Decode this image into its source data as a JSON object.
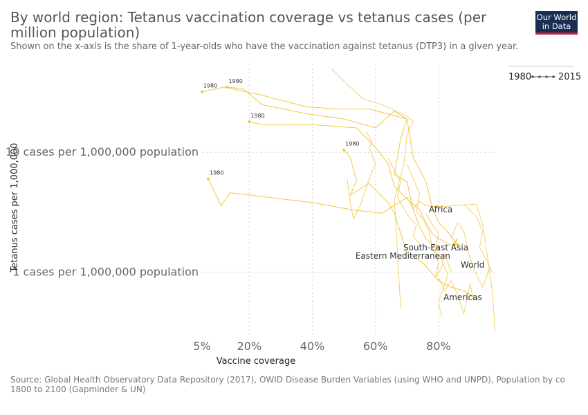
{
  "header": {
    "title": "By world region: Tetanus vaccination coverage vs tetanus cases (per million population)",
    "subtitle": "Shown on the x-axis is the share of 1-year-olds who have the vaccination against tetanus (DTP3) in a given year."
  },
  "logo": {
    "line1": "Our World",
    "line2": "in Data"
  },
  "timeline": {
    "start": "1980",
    "end": "2015"
  },
  "source": {
    "line1": "Source: Global Health Observatory Data Repository (2017), OWID Disease Burden Variables (using WHO and UNPD), Population by co",
    "line2": "1800 to 2100 (Gapminder & UN)"
  },
  "colors": {
    "series": "#f4c542",
    "grid": "#dddddd",
    "label": "#333333"
  },
  "chart_data": {
    "type": "scatter",
    "connected": true,
    "xlabel": "Vaccine coverage",
    "ylabel": "Tetanus cases per 1,000,000",
    "xscale": "linear",
    "yscale": "log",
    "xlim": [
      5,
      98
    ],
    "ylim": [
      0.3,
      55
    ],
    "x_ticks": [
      {
        "value": 5,
        "label": "5%"
      },
      {
        "value": 20,
        "label": "20%"
      },
      {
        "value": 40,
        "label": "40%"
      },
      {
        "value": 60,
        "label": "60%"
      },
      {
        "value": 80,
        "label": "80%"
      }
    ],
    "y_ticks": [
      {
        "value": 10,
        "label": "10 cases per 1,000,000 population"
      },
      {
        "value": 1,
        "label": "1 cases per 1,000,000 population"
      }
    ],
    "series": [
      {
        "name": "Africa",
        "start_label": "1980",
        "points": [
          [
            7,
            6
          ],
          [
            11,
            3.6
          ],
          [
            14,
            4.6
          ],
          [
            40,
            3.8
          ],
          [
            53,
            3.3
          ],
          [
            62,
            3.1
          ],
          [
            66,
            3.6
          ],
          [
            70,
            4.2
          ],
          [
            72,
            3.4
          ],
          [
            74,
            3.9
          ],
          [
            76,
            3.6
          ],
          [
            80,
            3.5
          ]
        ]
      },
      {
        "name": "South-East Asia",
        "start_label": "1980",
        "points": [
          [
            20,
            18
          ],
          [
            24,
            17
          ],
          [
            40,
            17
          ],
          [
            54,
            16
          ],
          [
            60,
            11
          ],
          [
            64,
            8
          ],
          [
            66,
            5.2
          ],
          [
            70,
            4.1
          ],
          [
            74,
            3.3
          ],
          [
            76,
            2.6
          ],
          [
            78,
            2.1
          ],
          [
            80,
            1.9
          ],
          [
            82,
            1.8
          ],
          [
            84,
            1.65
          ],
          [
            86,
            1.9
          ],
          [
            85,
            1.7
          ]
        ]
      },
      {
        "name": "Eastern Mediterranean",
        "start_label": "1980",
        "points": [
          [
            13,
            35
          ],
          [
            18,
            34
          ],
          [
            24,
            25
          ],
          [
            38,
            21
          ],
          [
            50,
            19
          ],
          [
            60,
            16
          ],
          [
            66,
            22
          ],
          [
            70,
            19
          ],
          [
            68,
            13
          ],
          [
            66,
            6.5
          ],
          [
            70,
            5.7
          ],
          [
            72,
            3.3
          ],
          [
            74,
            2.4
          ],
          [
            76,
            1.9
          ],
          [
            78,
            1.7
          ],
          [
            80,
            1.6
          ]
        ]
      },
      {
        "name": "World",
        "start_label": "1980",
        "points": [
          [
            5,
            32
          ],
          [
            12,
            35
          ],
          [
            24,
            30
          ],
          [
            38,
            24
          ],
          [
            48,
            23
          ],
          [
            58,
            23
          ],
          [
            70,
            19
          ],
          [
            72,
            9
          ],
          [
            76,
            5.7
          ],
          [
            78,
            3.5
          ],
          [
            80,
            2.6
          ],
          [
            82,
            2.3
          ],
          [
            84,
            2.0
          ],
          [
            86,
            1.7
          ]
        ]
      },
      {
        "name": "Americas",
        "start_label": "1980",
        "points": [
          [
            50,
            10.5
          ],
          [
            52,
            9
          ],
          [
            54,
            5.8
          ],
          [
            52,
            4.4
          ],
          [
            58,
            5.5
          ],
          [
            64,
            3.8
          ],
          [
            66,
            3.1
          ],
          [
            70,
            1.45
          ],
          [
            75,
            1.2
          ],
          [
            80,
            0.85
          ],
          [
            84,
            0.75
          ],
          [
            88,
            0.7
          ],
          [
            90,
            0.65
          ],
          [
            92,
            0.6
          ]
        ]
      }
    ],
    "extra_paths": [
      [
        [
          46,
          50
        ],
        [
          52,
          35
        ],
        [
          56,
          28
        ],
        [
          62,
          25
        ],
        [
          70,
          20
        ],
        [
          72,
          18
        ],
        [
          70,
          14
        ],
        [
          69,
          8
        ],
        [
          66,
          4
        ],
        [
          68,
          0.5
        ]
      ],
      [
        [
          57,
          15
        ],
        [
          59,
          12
        ],
        [
          58,
          11
        ],
        [
          60,
          8
        ],
        [
          58,
          6
        ],
        [
          55,
          3.5
        ],
        [
          53,
          2.8
        ],
        [
          52,
          3.8
        ],
        [
          51,
          6
        ]
      ],
      [
        [
          70,
          8
        ],
        [
          72,
          6
        ],
        [
          74,
          4.5
        ],
        [
          73,
          3.2
        ],
        [
          75,
          2.8
        ],
        [
          77,
          2.2
        ],
        [
          78,
          1.6
        ],
        [
          80,
          1.2
        ],
        [
          79,
          0.9
        ],
        [
          81,
          1.1
        ],
        [
          82,
          1.4
        ],
        [
          84,
          1.0
        ]
      ],
      [
        [
          80,
          3.5
        ],
        [
          86,
          3.6
        ],
        [
          92,
          3.7
        ],
        [
          94,
          2.5
        ],
        [
          96,
          1.1
        ],
        [
          97,
          0.7
        ],
        [
          98,
          0.32
        ]
      ],
      [
        [
          84,
          1.9
        ],
        [
          86,
          2.6
        ],
        [
          88,
          2.2
        ],
        [
          90,
          1.3
        ],
        [
          92,
          0.95
        ],
        [
          94,
          0.75
        ],
        [
          96,
          1.05
        ]
      ],
      [
        [
          80,
          0.9
        ],
        [
          82,
          0.7
        ],
        [
          84,
          0.85
        ],
        [
          86,
          0.65
        ],
        [
          88,
          0.45
        ],
        [
          90,
          0.8
        ],
        [
          91,
          0.6
        ]
      ],
      [
        [
          64,
          9
        ],
        [
          66,
          7
        ],
        [
          68,
          5.8
        ],
        [
          67,
          4.2
        ],
        [
          69,
          3.4
        ],
        [
          71,
          2.8
        ],
        [
          73,
          2.5
        ],
        [
          72,
          2.0
        ],
        [
          74,
          1.7
        ]
      ],
      [
        [
          76,
          3.1
        ],
        [
          78,
          2.5
        ],
        [
          80,
          2.1
        ],
        [
          79,
          1.5
        ],
        [
          81,
          1.25
        ],
        [
          83,
          0.95
        ],
        [
          82,
          0.8
        ],
        [
          80,
          0.56
        ],
        [
          81,
          0.42
        ]
      ],
      [
        [
          88,
          3.7
        ],
        [
          92,
          2.9
        ],
        [
          94,
          2.2
        ],
        [
          93,
          1.6
        ],
        [
          95,
          1.3
        ],
        [
          97,
          1.0
        ]
      ]
    ],
    "legend": "none",
    "grid": true
  }
}
